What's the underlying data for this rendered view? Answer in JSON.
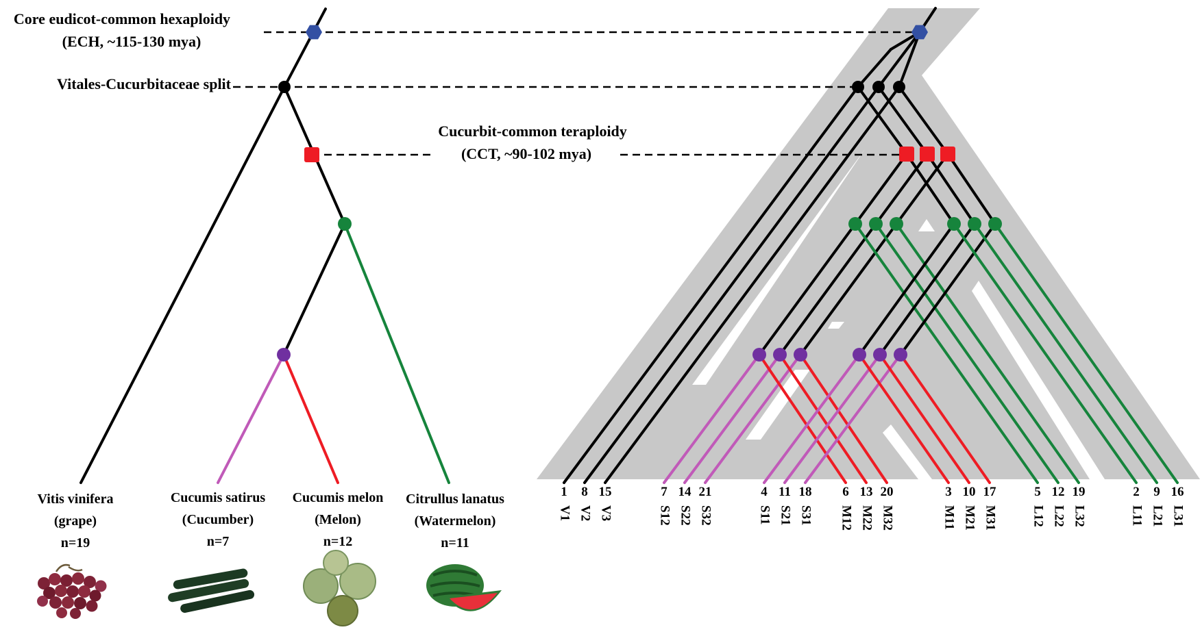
{
  "events": {
    "ech": {
      "line1": "Core eudicot-common hexaploidy",
      "line2": "(ECH, ~115-130 mya)"
    },
    "split": {
      "label": "Vitales-Cucurbitaceae split"
    },
    "cct": {
      "line1": "Cucurbit-common teraploidy",
      "line2": "(CCT, ~90-102  mya)"
    }
  },
  "species": [
    {
      "name": "Vitis vinifera",
      "common": "(grape)",
      "n": "n=19",
      "image": "grapes-image"
    },
    {
      "name": "Cucumis satirus",
      "common": "(Cucumber)",
      "n": "n=7",
      "image": "cucumber-image"
    },
    {
      "name": "Cucumis melon",
      "common": "(Melon)",
      "n": "n=12",
      "image": "melon-image"
    },
    {
      "name": "Citrullus lanatus",
      "common": "(Watermelon)",
      "n": "n=11",
      "image": "watermelon-image"
    }
  ],
  "chromosomes": [
    {
      "num": "1",
      "label": "V1"
    },
    {
      "num": "8",
      "label": "V2"
    },
    {
      "num": "15",
      "label": "V3"
    },
    {
      "num": "7",
      "label": "S12"
    },
    {
      "num": "14",
      "label": "S22"
    },
    {
      "num": "21",
      "label": "S32"
    },
    {
      "num": "4",
      "label": "S11"
    },
    {
      "num": "11",
      "label": "S21"
    },
    {
      "num": "18",
      "label": "S31"
    },
    {
      "num": "6",
      "label": "M12"
    },
    {
      "num": "13",
      "label": "M22"
    },
    {
      "num": "20",
      "label": "M32"
    },
    {
      "num": "3",
      "label": "M11"
    },
    {
      "num": "10",
      "label": "M21"
    },
    {
      "num": "17",
      "label": "M31"
    },
    {
      "num": "5",
      "label": "L12"
    },
    {
      "num": "12",
      "label": "L22"
    },
    {
      "num": "19",
      "label": "L32"
    },
    {
      "num": "2",
      "label": "L11"
    },
    {
      "num": "9",
      "label": "L21"
    },
    {
      "num": "16",
      "label": "L31"
    }
  ],
  "colors": {
    "ech_marker": "#3350a3",
    "split_marker": "#000000",
    "cct_marker": "#ee1c24",
    "watermelon_branch": "#16843c",
    "cucumber_branch": "#c05ab8",
    "melon_branch": "#ee1c24",
    "background_shade": "#c8c8c8"
  }
}
